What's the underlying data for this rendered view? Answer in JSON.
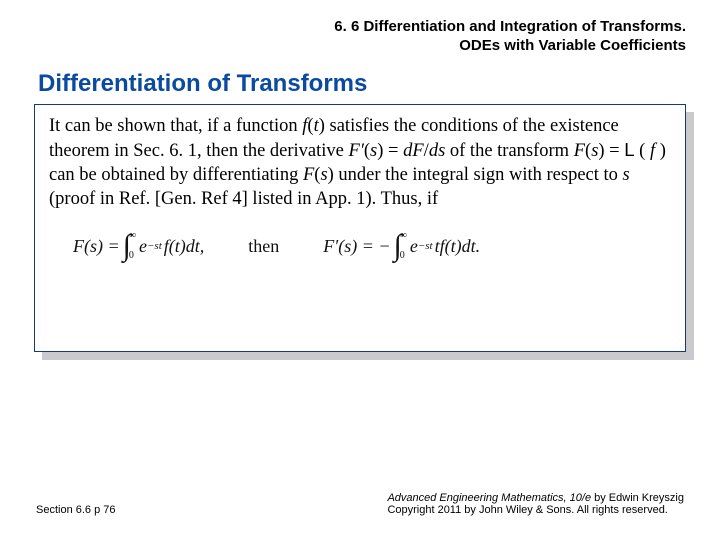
{
  "heading": {
    "line1": "6. 6 Differentiation and Integration of Transforms.",
    "line2": "ODEs with Variable Coefficients"
  },
  "section_title": "Differentiation of Transforms",
  "box": {
    "paragraph_html": "It can be shown that, if a function <span class='it'>f</span>(<span class='it'>t</span>) satisfies the conditions of the existence theorem in Sec. 6. 1, then the derivative <span class='it'>F′</span>(<span class='it'>s</span>) = <span class='it'>dF</span>/<span class='it'>ds</span> of the transform <span class='it'>F</span>(<span class='it'>s</span>) = <span class='scr'>L</span> ( <span class='it'>f</span> ) can be obtained by differentiating <span class='it'>F</span>(<span class='it'>s</span>) under the integral sign with respect to <span class='it'>s</span> (proof in Ref. [Gen. Ref 4] listed in App. 1). Thus, if",
    "equation": {
      "lhs_F": "F(s) =",
      "int_lower": "0",
      "int_upper": "∞",
      "integrand1": "e",
      "exp1": "−st",
      "after1": "f(t)dt,",
      "then": "then",
      "lhs_Fp": "F′(s) = −",
      "integrand2": "e",
      "exp2": "−st",
      "after2": "tf(t)dt."
    }
  },
  "footer": {
    "left": "Section 6.6  p 76",
    "book_title": "Advanced Engineering Mathematics, 10/e",
    "by": " by Edwin Kreyszig",
    "copyright": "Copyright 2011 by John Wiley & Sons.  All rights reserved."
  },
  "colors": {
    "title_blue": "#0a4aa0",
    "box_border": "#163a7a",
    "shadow": "#c9c9ce",
    "background": "#ffffff"
  },
  "fontsizes": {
    "top_heading": 15,
    "section_title": 24,
    "body": 18.5,
    "equation": 18,
    "footer": 11
  }
}
